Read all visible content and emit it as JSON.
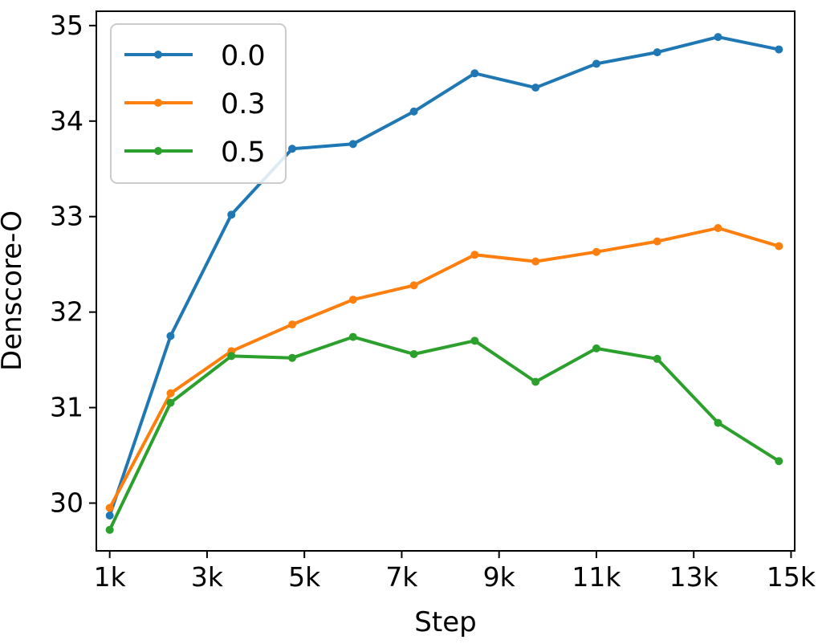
{
  "chart_data": {
    "type": "line",
    "title": "",
    "xlabel": "Step",
    "ylabel": "Denscore-O",
    "xlim": [
      975,
      15325
    ],
    "ylim": [
      29.5,
      35.15
    ],
    "x_ticks": [
      1250,
      3250,
      5250,
      7250,
      9250,
      11250,
      13250,
      15250
    ],
    "x_tick_labels": [
      "1k",
      "3k",
      "5k",
      "7k",
      "9k",
      "11k",
      "13k",
      "15k"
    ],
    "y_ticks": [
      30,
      31,
      32,
      33,
      34,
      35
    ],
    "y_tick_labels": [
      "30",
      "31",
      "32",
      "33",
      "34",
      "35"
    ],
    "grid": false,
    "legend_position": "top-left",
    "x": [
      1250,
      2500,
      3750,
      5000,
      6250,
      7500,
      8750,
      10000,
      11250,
      12500,
      13750,
      15000
    ],
    "series": [
      {
        "name": "0.0",
        "color": "#1f77b4",
        "values": [
          29.87,
          31.75,
          33.02,
          33.71,
          33.76,
          34.1,
          34.5,
          34.35,
          34.6,
          34.72,
          34.88,
          34.75
        ]
      },
      {
        "name": "0.3",
        "color": "#ff7f0e",
        "values": [
          29.95,
          31.15,
          31.59,
          31.87,
          32.13,
          32.28,
          32.6,
          32.53,
          32.63,
          32.74,
          32.88,
          32.69
        ]
      },
      {
        "name": "0.5",
        "color": "#2ca02c",
        "values": [
          29.72,
          31.05,
          31.54,
          31.52,
          31.74,
          31.56,
          31.7,
          31.27,
          31.62,
          31.51,
          30.84,
          30.44
        ]
      }
    ]
  }
}
